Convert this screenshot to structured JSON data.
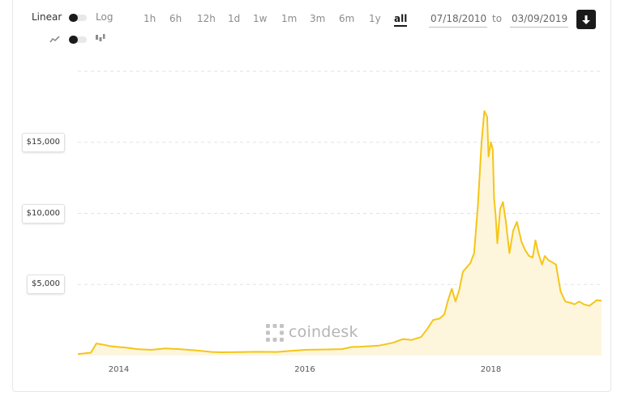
{
  "controls": {
    "scale_linear_label": "Linear",
    "scale_log_label": "Log",
    "ranges": [
      "1h",
      "6h",
      "12h",
      "1d",
      "1w",
      "1m",
      "3m",
      "6m",
      "1y",
      "all"
    ],
    "active_range": "all",
    "date_from": "07/18/2010",
    "date_to": "03/09/2019",
    "to_label": "to",
    "chart_style_icons": [
      "line-chart-icon",
      "candlestick-icon"
    ],
    "download_icon": "download-arrow-icon"
  },
  "watermark": {
    "text": "coindesk",
    "icon": "coindesk-logo-icon"
  },
  "colors": {
    "line": "#f5c518",
    "fill": "#fdf6dc",
    "grid": "#e2e2e2",
    "accent": "#1a1a1a"
  },
  "chart_data": {
    "type": "area",
    "xlabel": "",
    "ylabel": "",
    "x_ticks": [
      "2014",
      "2016",
      "2018"
    ],
    "y_ticks": [
      "$5,000",
      "$10,000",
      "$15,000"
    ],
    "y_tick_values": [
      5000,
      10000,
      15000
    ],
    "xlim": [
      2013.56,
      2019.19
    ],
    "ylim": [
      0,
      20000
    ],
    "grid": true,
    "series": [
      {
        "x": [
          2013.56,
          2013.7,
          2013.76,
          2013.84,
          2013.92,
          2014.0,
          2014.08,
          2014.2,
          2014.35,
          2014.5,
          2014.65,
          2014.85,
          2015.0,
          2015.1,
          2015.3,
          2015.5,
          2015.7,
          2015.85,
          2016.0,
          2016.2,
          2016.4,
          2016.5,
          2016.6,
          2016.8,
          2016.95,
          2017.05,
          2017.15,
          2017.25,
          2017.32,
          2017.38,
          2017.45,
          2017.5,
          2017.54,
          2017.58,
          2017.62,
          2017.66,
          2017.7,
          2017.74,
          2017.78,
          2017.82,
          2017.86,
          2017.9,
          2017.93,
          2017.96,
          2017.975,
          2018.0,
          2018.02,
          2018.035,
          2018.05,
          2018.07,
          2018.1,
          2018.13,
          2018.16,
          2018.2,
          2018.24,
          2018.28,
          2018.33,
          2018.37,
          2018.41,
          2018.45,
          2018.48,
          2018.51,
          2018.55,
          2018.58,
          2018.62,
          2018.65,
          2018.7,
          2018.75,
          2018.8,
          2018.86,
          2018.9,
          2018.95,
          2019.0,
          2019.06,
          2019.1,
          2019.14,
          2019.19
        ],
        "y": [
          100,
          200,
          850,
          750,
          650,
          600,
          550,
          450,
          400,
          500,
          450,
          350,
          250,
          230,
          240,
          260,
          250,
          330,
          400,
          420,
          450,
          600,
          620,
          700,
          900,
          1150,
          1100,
          1300,
          1900,
          2500,
          2600,
          2900,
          3900,
          4700,
          3800,
          4600,
          5900,
          6200,
          6500,
          7200,
          10500,
          15000,
          17200,
          16800,
          14000,
          15000,
          14500,
          11000,
          10000,
          7900,
          10300,
          10800,
          9500,
          7200,
          8800,
          9400,
          8000,
          7400,
          7000,
          6900,
          8100,
          7200,
          6400,
          7000,
          6700,
          6600,
          6400,
          4500,
          3800,
          3700,
          3600,
          3800,
          3600,
          3500,
          3700,
          3900,
          3850
        ]
      }
    ]
  }
}
